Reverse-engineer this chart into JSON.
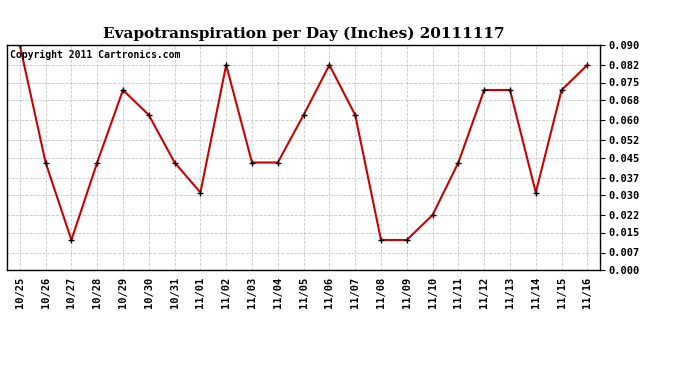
{
  "title": "Evapotranspiration per Day (Inches) 20111117",
  "copyright": "Copyright 2011 Cartronics.com",
  "x_labels": [
    "10/25",
    "10/26",
    "10/27",
    "10/28",
    "10/29",
    "10/30",
    "10/31",
    "11/01",
    "11/02",
    "11/03",
    "11/04",
    "11/05",
    "11/06",
    "11/07",
    "11/08",
    "11/09",
    "11/10",
    "11/11",
    "11/12",
    "11/13",
    "11/14",
    "11/15",
    "11/16"
  ],
  "y_values": [
    0.09,
    0.043,
    0.012,
    0.043,
    0.072,
    0.062,
    0.043,
    0.031,
    0.082,
    0.043,
    0.043,
    0.062,
    0.082,
    0.062,
    0.012,
    0.012,
    0.022,
    0.043,
    0.072,
    0.072,
    0.031,
    0.072,
    0.082
  ],
  "y_ticks": [
    0.0,
    0.007,
    0.015,
    0.022,
    0.03,
    0.037,
    0.045,
    0.052,
    0.06,
    0.068,
    0.075,
    0.082,
    0.09
  ],
  "line_color": "#cc0000",
  "marker": "+",
  "marker_color": "#000000",
  "background_color": "#ffffff",
  "grid_color": "#c8c8c8",
  "title_fontsize": 11,
  "copyright_fontsize": 7,
  "tick_fontsize": 7.5,
  "ylim": [
    0.0,
    0.09
  ]
}
